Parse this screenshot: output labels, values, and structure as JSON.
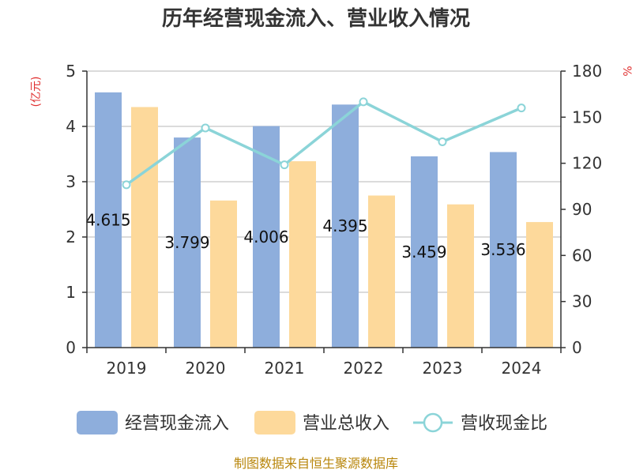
{
  "chart_data": {
    "type": "bar",
    "title": "历年经营现金流入、营业收入情况",
    "categories": [
      "2019",
      "2020",
      "2021",
      "2022",
      "2023",
      "2024"
    ],
    "y_left": {
      "unit": "(亿元)",
      "lim": [
        0,
        5
      ],
      "ticks": [
        "0",
        "1",
        "2",
        "3",
        "4",
        "5"
      ]
    },
    "y_right": {
      "unit": "%",
      "lim": [
        0,
        180
      ],
      "ticks": [
        "0",
        "30",
        "60",
        "90",
        "120",
        "150",
        "180"
      ]
    },
    "series": [
      {
        "name": "经营现金流入",
        "type": "bar",
        "axis": "left",
        "color": "#8eaedc",
        "values": [
          4.615,
          3.799,
          4.006,
          4.395,
          3.459,
          3.536
        ],
        "labels": [
          "4.615",
          "3.799",
          "4.006",
          "4.395",
          "3.459",
          "3.536"
        ]
      },
      {
        "name": "营业总收入",
        "type": "bar",
        "axis": "left",
        "color": "#fdd99b",
        "values": [
          4.35,
          2.66,
          3.37,
          2.75,
          2.59,
          2.27
        ]
      },
      {
        "name": "营收现金比",
        "type": "line",
        "axis": "right",
        "color": "#8bd4d8",
        "values": [
          106,
          143,
          119,
          160,
          134,
          156
        ]
      }
    ],
    "grid": true,
    "legend_position": "bottom"
  },
  "source": "制图数据来自恒生聚源数据库"
}
